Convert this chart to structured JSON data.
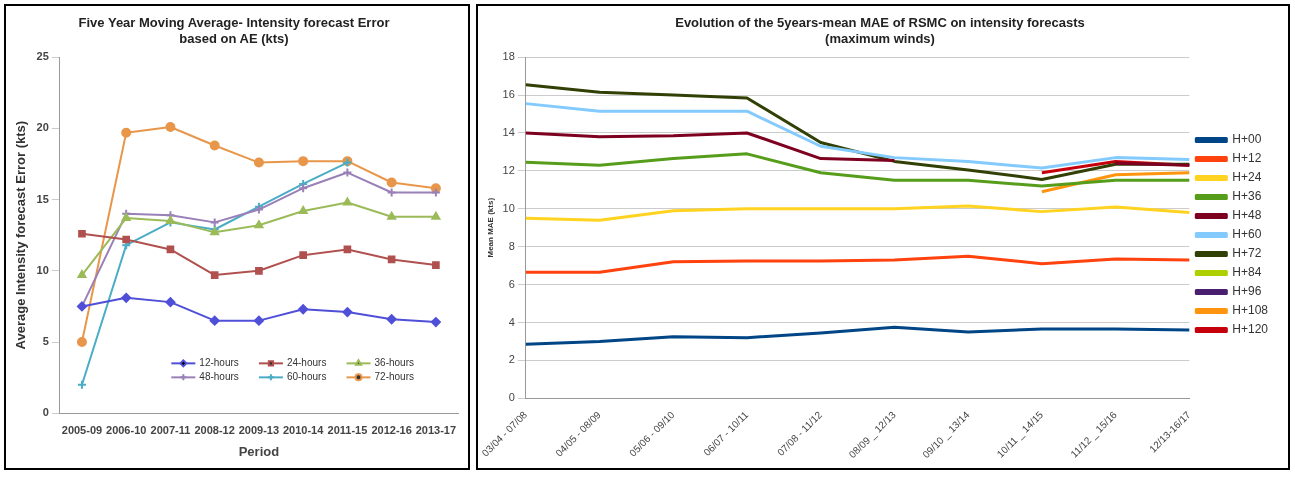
{
  "chart_data": [
    {
      "type": "line",
      "title": "Five Year Moving Average- Intensity forecast Error\nbased on AE (kts)",
      "xlabel": "Period",
      "ylabel": "Average Intensity forecast Error (kts)",
      "categories": [
        "2005-09",
        "2006-10",
        "2007-11",
        "2008-12",
        "2009-13",
        "2010-14",
        "2011-15",
        "2012-16",
        "2013-17"
      ],
      "ylim": [
        0,
        25
      ],
      "yticks": [
        0,
        5,
        10,
        15,
        20,
        25
      ],
      "grid": false,
      "legend": "bottom",
      "series": [
        {
          "name": "12-hours",
          "color": "#4f4fd8",
          "marker": "diamond",
          "values": [
            7.5,
            8.1,
            7.8,
            6.5,
            6.5,
            7.3,
            7.1,
            6.6,
            6.4
          ]
        },
        {
          "name": "24-hours",
          "color": "#b0504f",
          "marker": "square",
          "values": [
            12.6,
            12.2,
            11.5,
            9.7,
            10.0,
            11.1,
            11.5,
            10.8,
            10.4
          ]
        },
        {
          "name": "36-hours",
          "color": "#9bbb59",
          "marker": "triangle",
          "values": [
            9.7,
            13.7,
            13.5,
            12.7,
            13.2,
            14.2,
            14.8,
            13.8,
            13.8
          ]
        },
        {
          "name": "48-hours",
          "color": "#9a80b8",
          "marker": "cross",
          "values": [
            7.5,
            14.0,
            13.9,
            13.4,
            14.3,
            15.8,
            16.9,
            15.5,
            15.5
          ]
        },
        {
          "name": "60-hours",
          "color": "#4bacc6",
          "marker": "cross",
          "values": [
            2.0,
            11.8,
            13.4,
            12.9,
            14.5,
            16.1,
            17.6,
            null,
            null
          ]
        },
        {
          "name": "72-hours",
          "color": "#e8964a",
          "marker": "circle",
          "values": [
            5.0,
            19.7,
            20.1,
            18.8,
            17.6,
            17.7,
            17.7,
            16.2,
            15.8
          ]
        }
      ]
    },
    {
      "type": "line",
      "title": "Evolution of the 5years-mean MAE of RSMC on intensity forecasts\n(maximum winds)",
      "ylabel": "Mean MAE (kts)",
      "categories": [
        "03/04 - 07/08",
        "04/05 - 08/09",
        "05/06 - 09/10",
        "06/07 - 10/11",
        "07/08 - 11/12",
        "08/09 _ 12/13",
        "09/10 _ 13/14",
        "10/11 _ 14/15",
        "11/12 _ 15/16",
        "12/13-16/17"
      ],
      "ylim": [
        0,
        18
      ],
      "yticks": [
        0,
        2,
        4,
        6,
        8,
        10,
        12,
        14,
        16,
        18
      ],
      "grid": "y",
      "legend": "right",
      "marker": "none",
      "series": [
        {
          "name": "H+00",
          "color": "#004586",
          "values": [
            2.85,
            3.0,
            3.25,
            3.2,
            3.45,
            3.75,
            3.5,
            3.65,
            3.65,
            3.6
          ]
        },
        {
          "name": "H+12",
          "color": "#ff420e",
          "values": [
            6.65,
            6.65,
            7.2,
            7.25,
            7.25,
            7.3,
            7.5,
            7.1,
            7.35,
            7.3
          ]
        },
        {
          "name": "H+24",
          "color": "#ffd320",
          "values": [
            9.5,
            9.4,
            9.9,
            10.0,
            10.0,
            10.0,
            10.15,
            9.85,
            10.1,
            9.8
          ]
        },
        {
          "name": "H+36",
          "color": "#579d1c",
          "values": [
            12.45,
            12.3,
            12.65,
            12.9,
            11.9,
            11.5,
            11.5,
            11.2,
            11.5,
            11.5
          ]
        },
        {
          "name": "H+48",
          "color": "#7e0021",
          "values": [
            14.0,
            13.8,
            13.85,
            14.0,
            12.65,
            12.55,
            null,
            null,
            12.4,
            12.3
          ]
        },
        {
          "name": "H+60",
          "color": "#83caff",
          "values": [
            15.55,
            15.15,
            15.15,
            15.15,
            13.3,
            12.7,
            12.5,
            12.15,
            12.7,
            12.6
          ]
        },
        {
          "name": "H+72",
          "color": "#314004",
          "values": [
            16.55,
            16.15,
            16.0,
            15.85,
            13.5,
            12.5,
            12.05,
            11.55,
            12.35,
            12.35
          ]
        },
        {
          "name": "H+84",
          "color": "#aecf00",
          "values": [
            null,
            null,
            null,
            null,
            null,
            null,
            null,
            null,
            null,
            null
          ]
        },
        {
          "name": "H+96",
          "color": "#4b1f6f",
          "values": [
            null,
            null,
            null,
            null,
            null,
            null,
            null,
            null,
            null,
            null
          ]
        },
        {
          "name": "H+108",
          "color": "#ff950e",
          "values": [
            null,
            null,
            null,
            null,
            null,
            null,
            null,
            10.9,
            11.8,
            11.9
          ]
        },
        {
          "name": "H+120",
          "color": "#c5000b",
          "values": [
            null,
            null,
            null,
            null,
            null,
            null,
            null,
            11.9,
            12.5,
            12.3
          ]
        }
      ]
    }
  ]
}
